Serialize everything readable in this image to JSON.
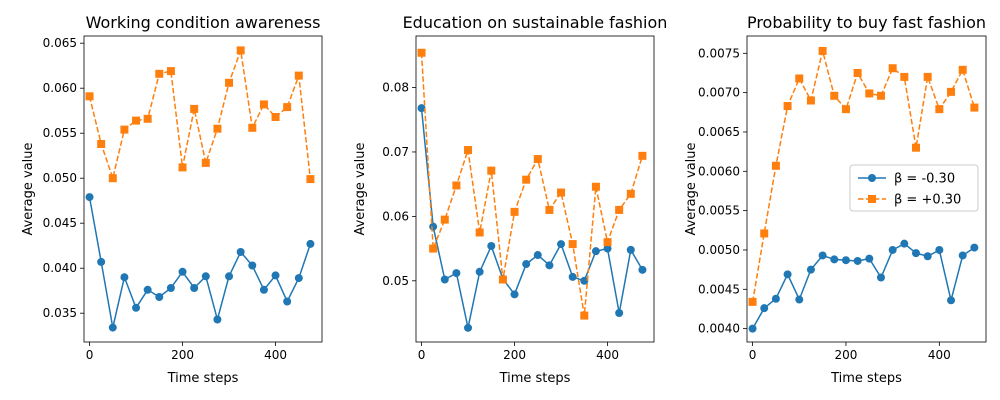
{
  "chart_data": [
    {
      "type": "line",
      "title": "Working condition awareness",
      "xlabel": "Time steps",
      "ylabel": "Average value",
      "xlim": [
        -11.9,
        499.9
      ],
      "ylim": [
        0.0318,
        0.0658
      ],
      "xticks": [
        0,
        200,
        400
      ],
      "xtick_labels": [
        "0",
        "200",
        "400"
      ],
      "yticks": [
        0.035,
        0.04,
        0.045,
        0.05,
        0.055,
        0.06,
        0.065
      ],
      "ytick_labels": [
        "0.035",
        "0.040",
        "0.045",
        "0.050",
        "0.055",
        "0.060",
        "0.065"
      ],
      "x": [
        0,
        25,
        50,
        75,
        100,
        125,
        150,
        175,
        200,
        225,
        250,
        275,
        300,
        325,
        350,
        375,
        400,
        425,
        450,
        475
      ],
      "series": [
        {
          "name": "β = -0.30",
          "color": "#1f77b4",
          "marker": "circle",
          "dashed": false,
          "values": [
            0.0479,
            0.0407,
            0.0334,
            0.039,
            0.0356,
            0.0376,
            0.0368,
            0.0378,
            0.0396,
            0.0378,
            0.0391,
            0.0343,
            0.0391,
            0.0418,
            0.0403,
            0.0376,
            0.0392,
            0.0363,
            0.0389,
            0.0427
          ]
        },
        {
          "name": "β = +0.30",
          "color": "#ff7f0e",
          "marker": "square",
          "dashed": true,
          "values": [
            0.0591,
            0.0538,
            0.05,
            0.0554,
            0.0564,
            0.0566,
            0.0616,
            0.0619,
            0.0512,
            0.0577,
            0.0517,
            0.0555,
            0.0606,
            0.0642,
            0.0556,
            0.0582,
            0.0568,
            0.0579,
            0.0614,
            0.0499
          ]
        }
      ]
    },
    {
      "type": "line",
      "title": "Education on sustainable fashion",
      "xlabel": "Time steps",
      "ylabel": "Average value",
      "xlim": [
        -11.9,
        499.9
      ],
      "ylim": [
        0.0405,
        0.088
      ],
      "xticks": [
        0,
        200,
        400
      ],
      "xtick_labels": [
        "0",
        "200",
        "400"
      ],
      "yticks": [
        0.05,
        0.06,
        0.07,
        0.08
      ],
      "ytick_labels": [
        "0.05",
        "0.06",
        "0.07",
        "0.08"
      ],
      "x": [
        0,
        25,
        50,
        75,
        100,
        125,
        150,
        175,
        200,
        225,
        250,
        275,
        300,
        325,
        350,
        375,
        400,
        425,
        450,
        475
      ],
      "series": [
        {
          "name": "β = -0.30",
          "color": "#1f77b4",
          "marker": "circle",
          "dashed": false,
          "values": [
            0.0768,
            0.0584,
            0.0502,
            0.0512,
            0.0427,
            0.0514,
            0.0554,
            0.0503,
            0.0479,
            0.0526,
            0.054,
            0.0524,
            0.0557,
            0.0506,
            0.05,
            0.0546,
            0.055,
            0.045,
            0.0548,
            0.0517
          ]
        },
        {
          "name": "β = +0.30",
          "color": "#ff7f0e",
          "marker": "square",
          "dashed": true,
          "values": [
            0.0854,
            0.055,
            0.0595,
            0.0648,
            0.0703,
            0.0575,
            0.0671,
            0.0502,
            0.0607,
            0.0657,
            0.0689,
            0.061,
            0.0637,
            0.0557,
            0.0446,
            0.0646,
            0.056,
            0.061,
            0.0635,
            0.0694
          ]
        }
      ]
    },
    {
      "type": "line",
      "title": "Probability to buy fast fashion",
      "xlabel": "Time steps",
      "ylabel": "Average value",
      "xlim": [
        -11.9,
        499.9
      ],
      "ylim": [
        0.00383,
        0.00772
      ],
      "xticks": [
        0,
        200,
        400
      ],
      "xtick_labels": [
        "0",
        "200",
        "400"
      ],
      "yticks": [
        0.004,
        0.0045,
        0.005,
        0.0055,
        0.006,
        0.0065,
        0.007,
        0.0075
      ],
      "ytick_labels": [
        "0.0040",
        "0.0045",
        "0.0050",
        "0.0055",
        "0.0060",
        "0.0065",
        "0.0070",
        "0.0075"
      ],
      "x": [
        0,
        25,
        50,
        75,
        100,
        125,
        150,
        175,
        200,
        225,
        250,
        275,
        300,
        325,
        350,
        375,
        400,
        425,
        450,
        475
      ],
      "series": [
        {
          "name": "β = -0.30",
          "color": "#1f77b4",
          "marker": "circle",
          "dashed": false,
          "values": [
            0.004,
            0.00426,
            0.00438,
            0.00469,
            0.00437,
            0.00475,
            0.00493,
            0.00488,
            0.00487,
            0.00486,
            0.00489,
            0.00465,
            0.005,
            0.00508,
            0.00496,
            0.00492,
            0.005,
            0.00436,
            0.00493,
            0.00503
          ]
        },
        {
          "name": "β = +0.30",
          "color": "#ff7f0e",
          "marker": "square",
          "dashed": true,
          "values": [
            0.00434,
            0.00521,
            0.00607,
            0.00683,
            0.00718,
            0.0069,
            0.00753,
            0.00696,
            0.00679,
            0.00725,
            0.00699,
            0.00696,
            0.00731,
            0.0072,
            0.0063,
            0.0072,
            0.00679,
            0.00701,
            0.00729,
            0.00681
          ]
        }
      ],
      "legend": {
        "location": "center-right",
        "entries": [
          "β = -0.30",
          "β = +0.30"
        ]
      }
    }
  ]
}
